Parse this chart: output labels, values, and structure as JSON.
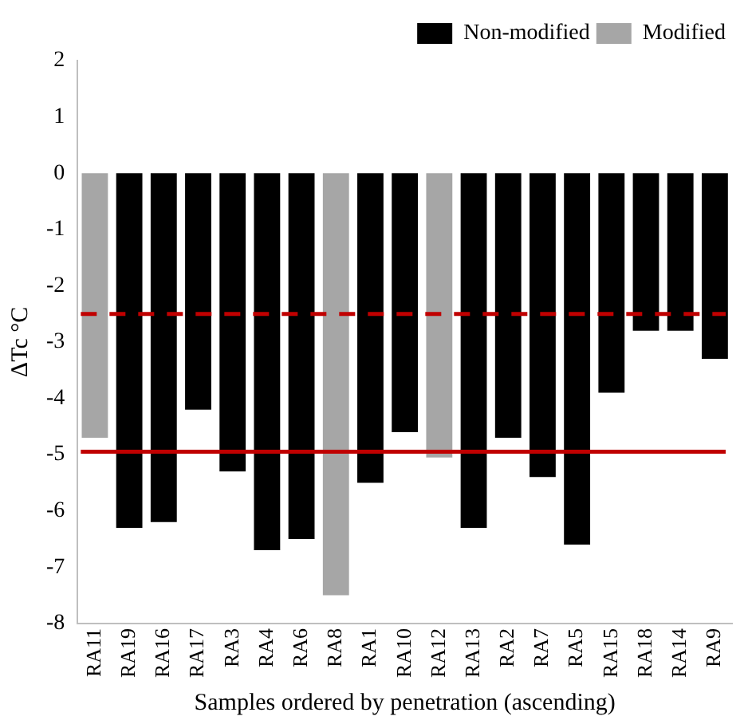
{
  "chart_data": {
    "type": "bar",
    "xlabel": "Samples ordered by penetration (ascending)",
    "ylabel": "ΔTc °C",
    "categories": [
      "RA11",
      "RA19",
      "RA16",
      "RA17",
      "RA3",
      "RA4",
      "RA6",
      "RA8",
      "RA1",
      "RA10",
      "RA12",
      "RA13",
      "RA2",
      "RA7",
      "RA5",
      "RA15",
      "RA18",
      "RA14",
      "RA9"
    ],
    "series": [
      {
        "name": "Non-modified",
        "color": "#000000",
        "values": [
          null,
          -6.3,
          -6.2,
          -4.2,
          -5.3,
          -6.7,
          -6.5,
          null,
          -5.5,
          -4.6,
          null,
          -6.3,
          -4.7,
          -5.4,
          -6.6,
          -3.9,
          -2.8,
          -2.8,
          -3.3
        ]
      },
      {
        "name": "Modified",
        "color": "#a6a6a6",
        "values": [
          -4.7,
          null,
          null,
          null,
          null,
          null,
          null,
          -7.5,
          null,
          null,
          -5.05,
          null,
          null,
          null,
          null,
          null,
          null,
          null,
          null
        ]
      }
    ],
    "ylim": [
      -8,
      2
    ],
    "yticks": [
      -8,
      -7,
      -6,
      -5,
      -4,
      -3,
      -2,
      -1,
      0,
      1,
      2
    ],
    "grid": false,
    "legend": "top right",
    "ref_lines": [
      {
        "axis": "y",
        "value": -2.5,
        "color": "#c00000",
        "line_style": "dashed"
      },
      {
        "axis": "y",
        "value": -4.95,
        "color": "#c00000",
        "line_style": "solid"
      }
    ]
  }
}
